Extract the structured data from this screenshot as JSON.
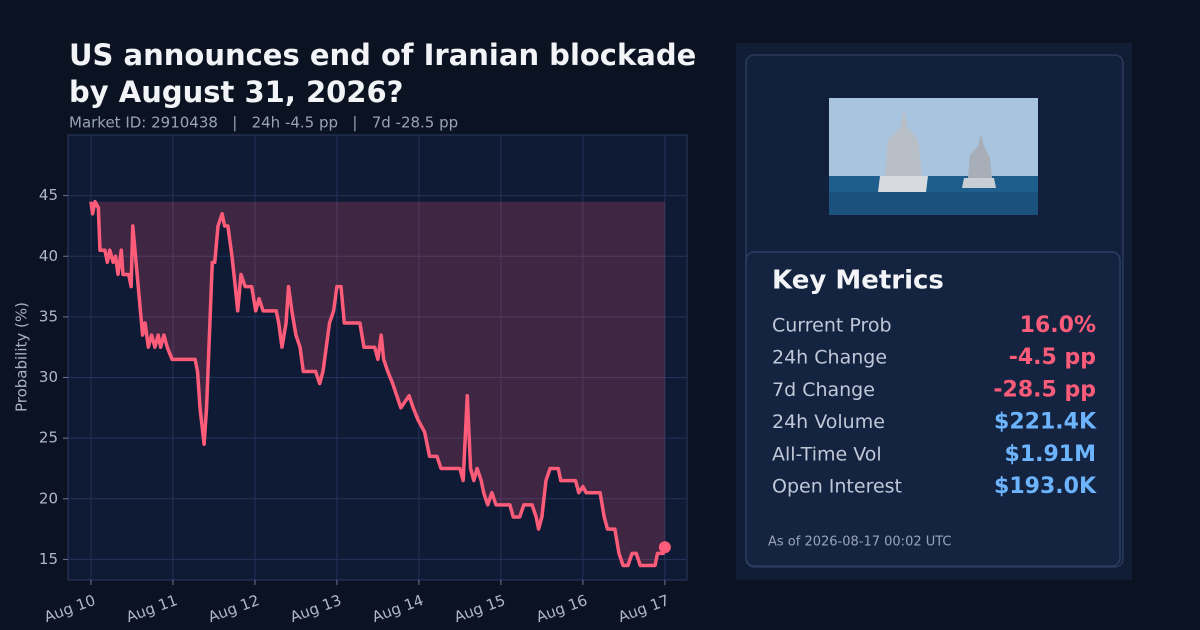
{
  "chart_data": {
    "type": "line",
    "title": [
      "US announces end of Iranian blockade",
      "by August 31, 2026?"
    ],
    "subtitle": "Market ID: 2910438   |   24h -4.5 pp   |   7d -28.5 pp",
    "ylabel": "Probability (%)",
    "color": "#ff5c7a",
    "fill_color": "#ff5c7a",
    "grid": true,
    "xlim": [
      -0.28,
      7.27
    ],
    "ylim": [
      13.3,
      50
    ],
    "yticks": [
      15,
      20,
      25,
      30,
      35,
      40,
      45
    ],
    "xticks": [
      {
        "value": 0,
        "label": "Aug 10"
      },
      {
        "value": 1,
        "label": "Aug 11"
      },
      {
        "value": 2,
        "label": "Aug 12"
      },
      {
        "value": 3,
        "label": "Aug 13"
      },
      {
        "value": 4,
        "label": "Aug 14"
      },
      {
        "value": 5,
        "label": "Aug 15"
      },
      {
        "value": 6,
        "label": "Aug 16"
      },
      {
        "value": 7,
        "label": "Aug 17"
      }
    ],
    "x": [
      0,
      0.02,
      0.05,
      0.09,
      0.11,
      0.17,
      0.2,
      0.23,
      0.27,
      0.3,
      0.33,
      0.37,
      0.39,
      0.46,
      0.49,
      0.51,
      0.55,
      0.59,
      0.63,
      0.66,
      0.7,
      0.74,
      0.78,
      0.82,
      0.85,
      0.89,
      0.93,
      0.99,
      1.27,
      1.3,
      1.33,
      1.38,
      1.41,
      1.48,
      1.51,
      1.55,
      1.6,
      1.63,
      1.67,
      1.72,
      1.76,
      1.79,
      1.83,
      1.88,
      1.96,
      2.01,
      2.05,
      2.1,
      2.26,
      2.29,
      2.33,
      2.38,
      2.41,
      2.45,
      2.5,
      2.55,
      2.59,
      2.74,
      2.79,
      2.83,
      2.87,
      2.91,
      2.96,
      3.0,
      3.05,
      3.09,
      3.28,
      3.33,
      3.46,
      3.5,
      3.54,
      3.57,
      3.62,
      3.68,
      3.73,
      3.78,
      3.88,
      3.93,
      3.99,
      4.07,
      4.13,
      4.22,
      4.27,
      4.5,
      4.54,
      4.59,
      4.63,
      4.67,
      4.71,
      4.76,
      4.79,
      4.84,
      4.89,
      4.94,
      5.11,
      5.15,
      5.23,
      5.28,
      5.38,
      5.43,
      5.46,
      5.5,
      5.55,
      5.6,
      5.7,
      5.73,
      5.91,
      5.95,
      6.0,
      6.04,
      6.21,
      6.26,
      6.3,
      6.39,
      6.44,
      6.49,
      6.55,
      6.6,
      6.65,
      6.7,
      6.88,
      6.91,
      6.98,
      7.0
    ],
    "values": [
      44.5,
      43.5,
      44.5,
      44,
      40.5,
      40.5,
      39.5,
      40.5,
      39.5,
      40,
      38.5,
      40.5,
      38.5,
      38.5,
      37.5,
      42.5,
      39.5,
      36.5,
      33.5,
      34.5,
      32.5,
      33.5,
      32.5,
      33.5,
      32.5,
      33.5,
      32.5,
      31.5,
      31.5,
      30.5,
      27.5,
      24.5,
      27.5,
      39.5,
      39.5,
      42.5,
      43.5,
      42.5,
      42.5,
      40,
      37.5,
      35.5,
      38.5,
      37.5,
      37.5,
      35.5,
      36.5,
      35.5,
      35.5,
      34.5,
      32.5,
      34.5,
      37.5,
      35.5,
      33.5,
      32.5,
      30.5,
      30.5,
      29.5,
      30.5,
      32.5,
      34.5,
      35.5,
      37.5,
      37.5,
      34.5,
      34.5,
      32.5,
      32.5,
      31.5,
      33.5,
      31.5,
      30.5,
      29.5,
      28.5,
      27.5,
      28.5,
      27.5,
      26.5,
      25.5,
      23.5,
      23.5,
      22.5,
      22.5,
      21.5,
      28.5,
      22.5,
      21.5,
      22.5,
      21.5,
      20.5,
      19.5,
      20.5,
      19.5,
      19.5,
      18.5,
      18.5,
      19.5,
      19.5,
      18.5,
      17.5,
      18.5,
      21.5,
      22.5,
      22.5,
      21.5,
      21.5,
      20.5,
      21,
      20.5,
      20.5,
      18.5,
      17.5,
      17.5,
      15.5,
      14.5,
      14.5,
      15.5,
      15.5,
      14.5,
      14.5,
      15.5,
      15.5,
      16
    ]
  },
  "panel": {
    "heading": "Key Metrics",
    "metrics": [
      {
        "label": "Current Prob",
        "value": "16.0%",
        "color": "#ff5c7a"
      },
      {
        "label": "24h Change",
        "value": "-4.5 pp",
        "color": "#ff5c7a"
      },
      {
        "label": "7d Change",
        "value": "-28.5 pp",
        "color": "#ff5c7a"
      },
      {
        "label": "24h Volume",
        "value": "$221.4K",
        "color": "#6cb4ff"
      },
      {
        "label": "All-Time Vol",
        "value": "$1.91M",
        "color": "#6cb4ff"
      },
      {
        "label": "Open Interest",
        "value": "$193.0K",
        "color": "#6cb4ff"
      }
    ],
    "timestamp": "As of 2026-08-17 00:02 UTC"
  }
}
